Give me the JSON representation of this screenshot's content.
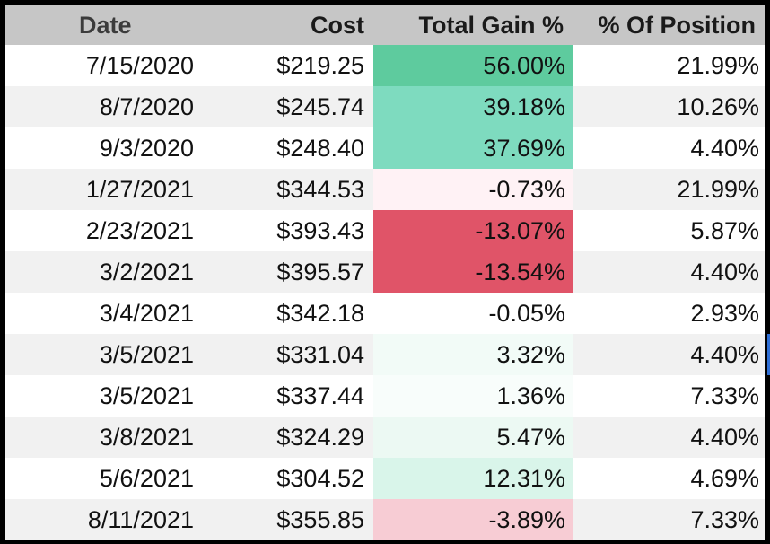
{
  "columns": [
    "Date",
    "Cost",
    "Total Gain %",
    "% Of Position"
  ],
  "rows": [
    {
      "date": "7/15/2020",
      "cost": "$219.25",
      "gain": "56.00%",
      "position": "21.99%",
      "gain_color": "#5ecb9e"
    },
    {
      "date": "8/7/2020",
      "cost": "$245.74",
      "gain": "39.18%",
      "position": "10.26%",
      "gain_color": "#7edbbf"
    },
    {
      "date": "9/3/2020",
      "cost": "$248.40",
      "gain": "37.69%",
      "position": "4.40%",
      "gain_color": "#7edbbf"
    },
    {
      "date": "1/27/2021",
      "cost": "$344.53",
      "gain": "-0.73%",
      "position": "21.99%",
      "gain_color": "#fff2f5"
    },
    {
      "date": "2/23/2021",
      "cost": "$393.43",
      "gain": "-13.07%",
      "position": "5.87%",
      "gain_color": "#e05468"
    },
    {
      "date": "3/2/2021",
      "cost": "$395.57",
      "gain": "-13.54%",
      "position": "4.40%",
      "gain_color": "#e05468"
    },
    {
      "date": "3/4/2021",
      "cost": "$342.18",
      "gain": "-0.05%",
      "position": "2.93%",
      "gain_color": "#ffffff"
    },
    {
      "date": "3/5/2021",
      "cost": "$331.04",
      "gain": "3.32%",
      "position": "4.40%",
      "gain_color": "#f2fbf7"
    },
    {
      "date": "3/5/2021",
      "cost": "$337.44",
      "gain": "1.36%",
      "position": "7.33%",
      "gain_color": "#f8fdfb"
    },
    {
      "date": "3/8/2021",
      "cost": "$324.29",
      "gain": "5.47%",
      "position": "4.40%",
      "gain_color": "#ecf9f3"
    },
    {
      "date": "5/6/2021",
      "cost": "$304.52",
      "gain": "12.31%",
      "position": "4.69%",
      "gain_color": "#d9f5ea"
    },
    {
      "date": "8/11/2021",
      "cost": "$355.85",
      "gain": "-3.89%",
      "position": "7.33%",
      "gain_color": "#f7ccd4"
    }
  ]
}
